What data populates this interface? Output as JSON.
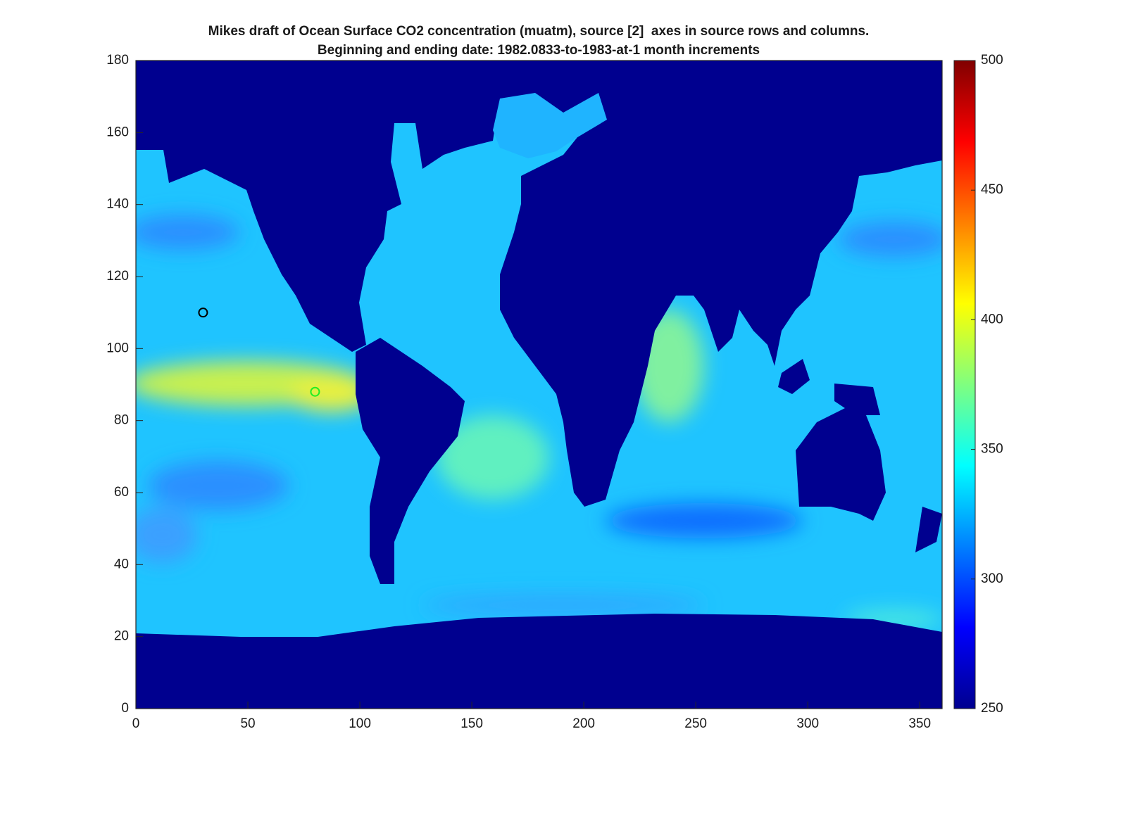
{
  "chart_data": {
    "type": "heatmap",
    "title": [
      "Mikes draft of Ocean Surface CO2 concentration (muatm), source [2]  axes in source rows and columns.",
      "Beginning and ending date: 1982.0833-to-1983-at-1 month increments"
    ],
    "xlim": [
      0,
      360
    ],
    "xticks": [
      0,
      50,
      100,
      150,
      200,
      250,
      300,
      350
    ],
    "ylim": [
      0,
      180
    ],
    "yticks": [
      0,
      20,
      40,
      60,
      80,
      100,
      120,
      140,
      160,
      180
    ],
    "colormap": "jet",
    "clim": [
      250,
      500
    ],
    "cticks": [
      250,
      300,
      350,
      400,
      450,
      500
    ],
    "points": {
      "x": [
        30,
        80
      ],
      "y": [
        110,
        88
      ],
      "colors": [
        "#000000",
        "#22ee22"
      ]
    }
  }
}
